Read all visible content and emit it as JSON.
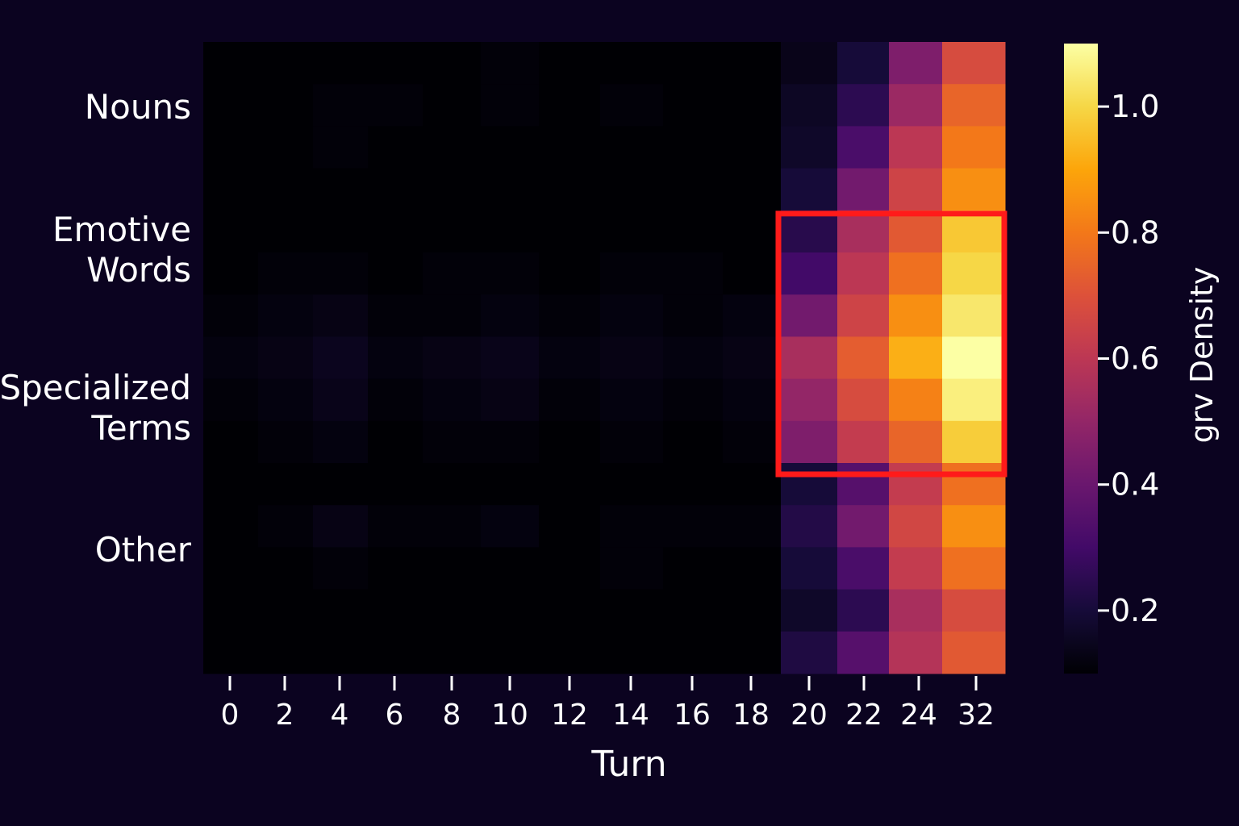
{
  "chart_data": {
    "type": "heatmap",
    "xlabel": "Turn",
    "x_tick_labels": [
      "0",
      "2",
      "4",
      "6",
      "8",
      "10",
      "12",
      "14",
      "16",
      "18",
      "20",
      "22",
      "24",
      "32"
    ],
    "y_categories": [
      "Nouns",
      "Emotive\nWords",
      "Specialized\nTerms",
      "Other"
    ],
    "colorbar": {
      "label": "grv Density",
      "range": [
        0.1,
        1.1
      ],
      "ticks": [
        "0.2",
        "0.4",
        "0.6",
        "0.8",
        "1.0"
      ],
      "tick_values": [
        0.2,
        0.4,
        0.6,
        0.8,
        1.0
      ],
      "colormap": "inferno"
    },
    "values": [
      [
        0.1,
        0.1,
        0.1,
        0.1,
        0.1,
        0.11,
        0.1,
        0.1,
        0.1,
        0.1,
        0.14,
        0.2,
        0.45,
        0.68
      ],
      [
        0.1,
        0.1,
        0.11,
        0.11,
        0.1,
        0.11,
        0.1,
        0.11,
        0.1,
        0.1,
        0.16,
        0.25,
        0.52,
        0.75
      ],
      [
        0.1,
        0.1,
        0.11,
        0.1,
        0.1,
        0.1,
        0.1,
        0.1,
        0.1,
        0.1,
        0.17,
        0.32,
        0.6,
        0.8
      ],
      [
        0.1,
        0.1,
        0.1,
        0.1,
        0.1,
        0.1,
        0.1,
        0.1,
        0.1,
        0.1,
        0.2,
        0.42,
        0.65,
        0.85
      ],
      [
        0.1,
        0.1,
        0.1,
        0.1,
        0.1,
        0.1,
        0.1,
        0.1,
        0.1,
        0.1,
        0.24,
        0.55,
        0.72,
        0.97
      ],
      [
        0.1,
        0.11,
        0.11,
        0.1,
        0.11,
        0.11,
        0.1,
        0.11,
        0.11,
        0.1,
        0.3,
        0.6,
        0.78,
        1.0
      ],
      [
        0.11,
        0.12,
        0.13,
        0.11,
        0.11,
        0.12,
        0.11,
        0.12,
        0.11,
        0.12,
        0.42,
        0.65,
        0.85,
        1.04
      ],
      [
        0.12,
        0.13,
        0.15,
        0.12,
        0.13,
        0.14,
        0.12,
        0.13,
        0.12,
        0.13,
        0.55,
        0.73,
        0.92,
        1.1
      ],
      [
        0.11,
        0.12,
        0.14,
        0.11,
        0.12,
        0.13,
        0.11,
        0.12,
        0.11,
        0.12,
        0.5,
        0.68,
        0.82,
        1.06
      ],
      [
        0.1,
        0.11,
        0.12,
        0.1,
        0.11,
        0.11,
        0.1,
        0.11,
        0.1,
        0.11,
        0.45,
        0.62,
        0.75,
        0.98
      ],
      [
        0.1,
        0.1,
        0.1,
        0.1,
        0.1,
        0.1,
        0.1,
        0.1,
        0.1,
        0.1,
        0.2,
        0.35,
        0.62,
        0.78
      ],
      [
        0.1,
        0.11,
        0.13,
        0.11,
        0.11,
        0.12,
        0.1,
        0.11,
        0.11,
        0.11,
        0.23,
        0.42,
        0.66,
        0.85
      ],
      [
        0.1,
        0.1,
        0.11,
        0.1,
        0.1,
        0.1,
        0.1,
        0.11,
        0.1,
        0.1,
        0.2,
        0.32,
        0.62,
        0.78
      ],
      [
        0.1,
        0.1,
        0.1,
        0.1,
        0.1,
        0.1,
        0.1,
        0.1,
        0.1,
        0.1,
        0.17,
        0.25,
        0.55,
        0.68
      ],
      [
        0.1,
        0.1,
        0.1,
        0.1,
        0.1,
        0.1,
        0.1,
        0.1,
        0.1,
        0.1,
        0.22,
        0.35,
        0.58,
        0.72
      ]
    ],
    "highlight": {
      "x_from": "20",
      "x_to": "32",
      "y_from": "Emotive\nWords",
      "y_to": "Specialized\nTerms",
      "color": "#ff1a1a"
    },
    "grid": false,
    "legend": "colorbar-right"
  }
}
